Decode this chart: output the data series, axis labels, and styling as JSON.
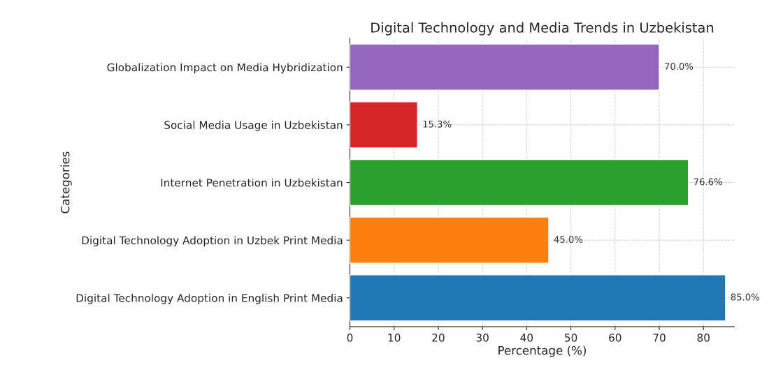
{
  "chart_data": {
    "type": "bar",
    "orientation": "horizontal",
    "title": "Digital Technology and Media Trends in Uzbekistan",
    "xlabel": "Percentage (%)",
    "ylabel": "Categories",
    "categories": [
      "Globalization Impact on Media Hybridization",
      "Social Media Usage in Uzbekistan",
      "Internet Penetration in Uzbekistan",
      "Digital Technology Adoption in Uzbek Print Media",
      "Digital Technology Adoption in English Print Media"
    ],
    "values": [
      70.0,
      15.3,
      76.6,
      45.0,
      85.0
    ],
    "colors": [
      "#9467bd",
      "#d62728",
      "#2ca02c",
      "#ff7f0e",
      "#1f77b4"
    ],
    "value_labels": [
      "70.0%",
      "15.3%",
      "76.6%",
      "45.0%",
      "85.0%"
    ],
    "xlim": [
      0,
      87
    ],
    "xticks": [
      0,
      10,
      20,
      30,
      40,
      50,
      60,
      70,
      80
    ],
    "grid": true,
    "line_style": "dashed"
  }
}
